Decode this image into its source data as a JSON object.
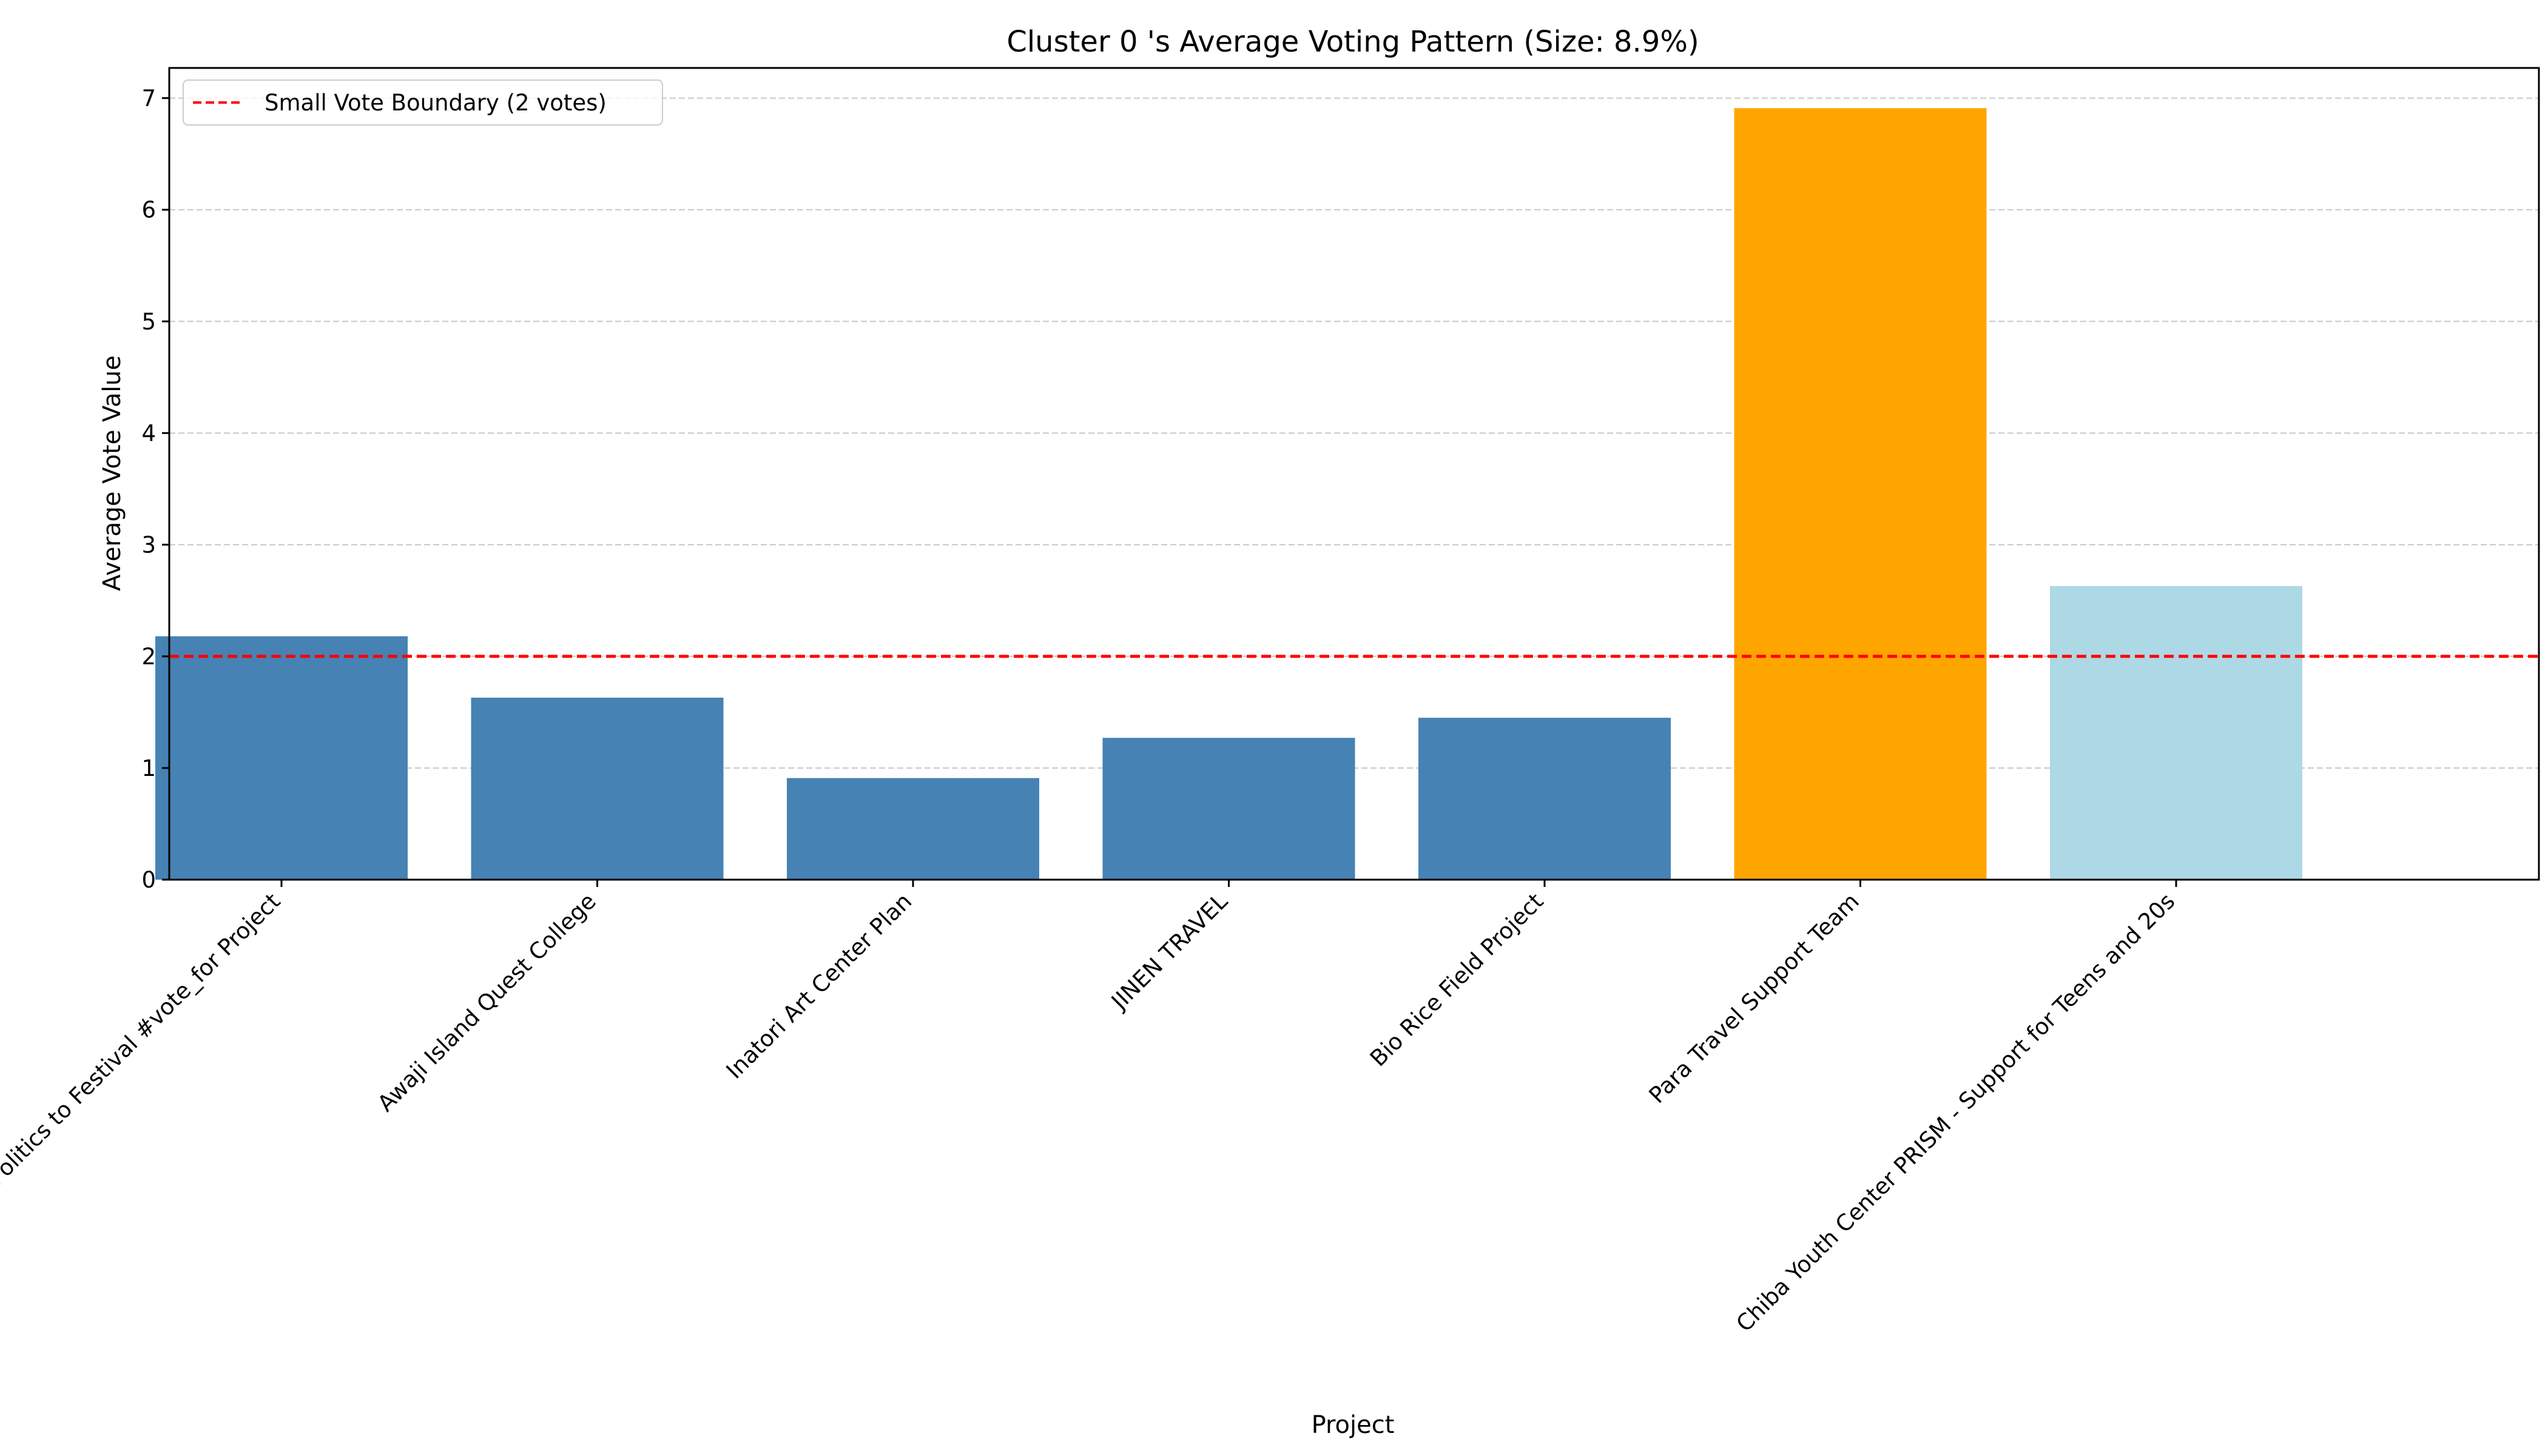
{
  "chart_data": {
    "type": "bar",
    "title": "Cluster 0 's Average Voting Pattern (Size: 8.9%)",
    "xlabel": "Project",
    "ylabel": "Average Vote Value",
    "ylim": [
      0,
      7.27
    ],
    "yticks": [
      0,
      1,
      2,
      3,
      4,
      5,
      6,
      7
    ],
    "grid": "y-dashed",
    "legend_position": "top-left",
    "categories": [
      "Politics to Festival #vote_for Project",
      "Awaji Island Quest College",
      "Inatori Art Center Plan",
      "JINEN TRAVEL",
      "Bio Rice Field Project",
      "Para Travel Support Team",
      "Chiba Youth Center PRISM - Support for Teens and 20s"
    ],
    "values": [
      2.18,
      1.63,
      0.91,
      1.27,
      1.45,
      6.91,
      2.63
    ],
    "bar_colors": [
      "#4682b4",
      "#4682b4",
      "#4682b4",
      "#4682b4",
      "#4682b4",
      "#ffa500",
      "#add8e6"
    ],
    "reference_line": {
      "value": 2,
      "label": "Small Vote Boundary (2 votes)",
      "color": "#ff0000",
      "style": "dashed"
    }
  }
}
